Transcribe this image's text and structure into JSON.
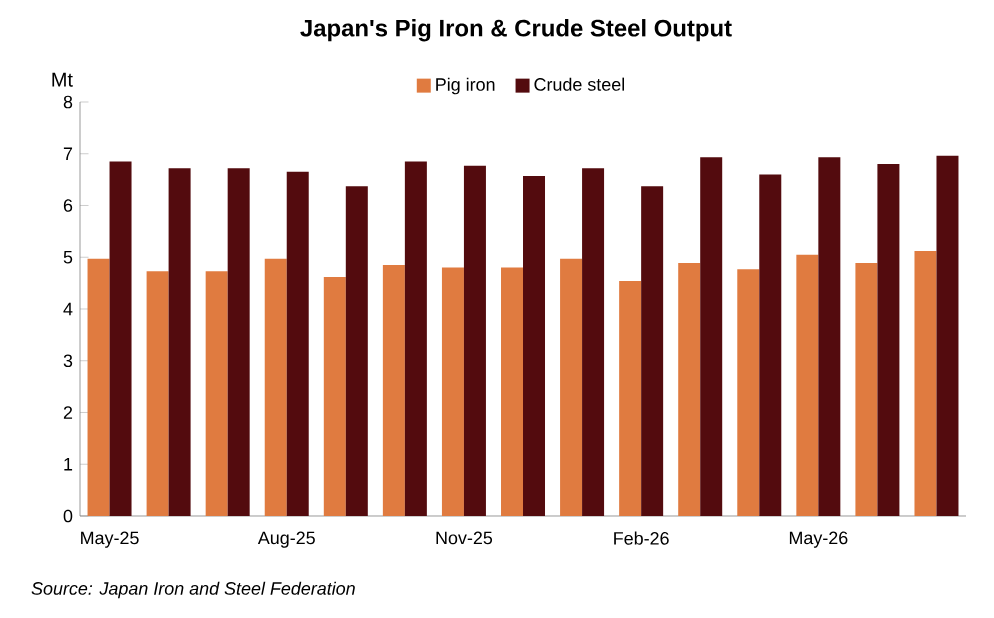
{
  "chart_data": {
    "type": "bar",
    "title": "Japan's Pig Iron & Crude Steel Output",
    "ylabel": "Mt",
    "categories": [
      "May-25",
      null,
      null,
      "Aug-25",
      null,
      null,
      "Nov-25",
      null,
      null,
      "Feb-26",
      null,
      null,
      "May-26",
      null,
      null
    ],
    "series": [
      {
        "name": "Pig iron",
        "color": "#e07b40",
        "values": [
          4.97,
          4.73,
          4.73,
          4.97,
          4.62,
          4.85,
          4.8,
          4.8,
          4.97,
          4.54,
          4.89,
          4.77,
          5.05,
          4.89,
          5.12
        ]
      },
      {
        "name": "Crude steel",
        "color": "#530b0e",
        "values": [
          6.85,
          6.72,
          6.72,
          6.65,
          6.37,
          6.85,
          6.77,
          6.57,
          6.72,
          6.37,
          6.93,
          6.6,
          6.93,
          6.8,
          6.96
        ]
      }
    ],
    "ylim": [
      0,
      8
    ],
    "yticks": [
      0,
      1,
      2,
      3,
      4,
      5,
      6,
      7,
      8
    ],
    "legend": "top",
    "grid": false,
    "annotations": [
      "Source: Japan Iron and Steel Federation"
    ]
  }
}
